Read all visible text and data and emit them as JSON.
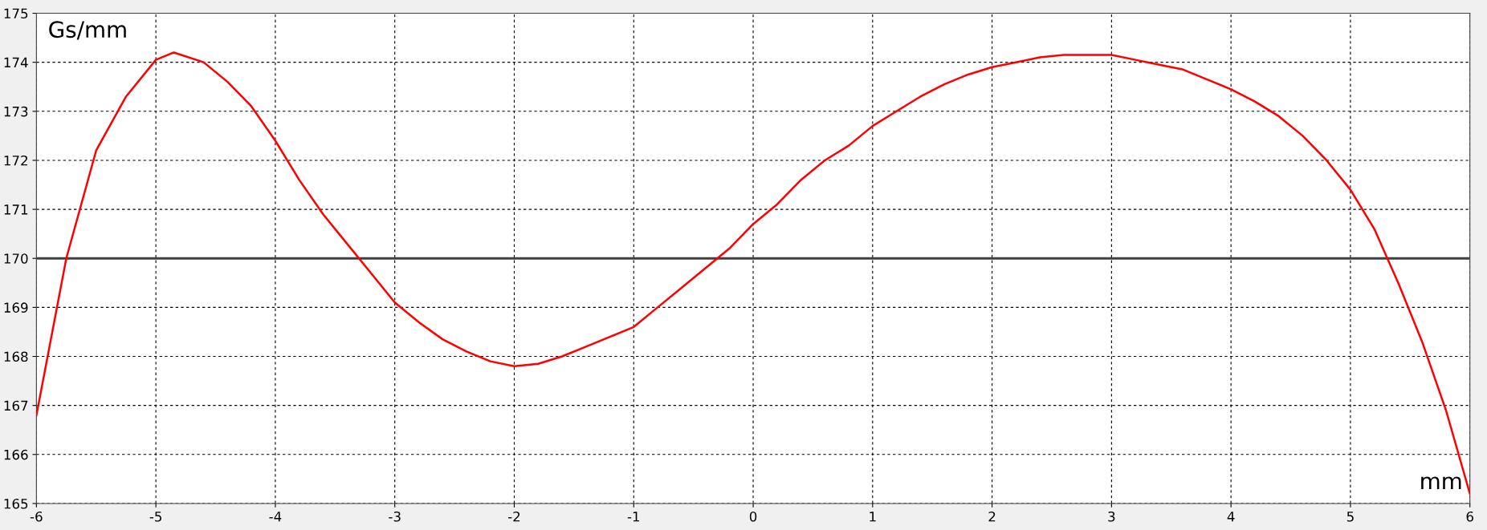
{
  "chart_data": {
    "type": "line",
    "xlabel": "mm",
    "ylabel": "Gs/mm",
    "series": [
      {
        "color": "#ff0000",
        "x": [
          -6,
          -5.75,
          -5.5,
          -5.25,
          -5,
          -4.85,
          -4.6,
          -4.4,
          -4.2,
          -4,
          -3.8,
          -3.6,
          -3.4,
          -3.2,
          -3,
          -2.8,
          -2.6,
          -2.4,
          -2.2,
          -2,
          -1.8,
          -1.6,
          -1.4,
          -1.2,
          -1,
          -0.8,
          -0.6,
          -0.4,
          -0.2,
          0,
          0.2,
          0.4,
          0.6,
          0.8,
          1,
          1.2,
          1.4,
          1.6,
          1.8,
          2,
          2.2,
          2.4,
          2.6,
          2.8,
          3,
          3.2,
          3.4,
          3.6,
          3.8,
          4,
          4.2,
          4.4,
          4.6,
          4.8,
          5,
          5.2,
          5.3,
          5.4,
          5.6,
          5.8,
          6
        ],
        "values": [
          166.8,
          170,
          172.2,
          173.3,
          174.05,
          174.2,
          174.0,
          173.6,
          173.1,
          172.4,
          171.6,
          170.9,
          170.3,
          169.7,
          169.1,
          168.7,
          168.35,
          168.1,
          167.9,
          167.8,
          167.85,
          168.0,
          168.2,
          168.4,
          168.6,
          169.0,
          169.4,
          169.8,
          170.2,
          170.7,
          171.1,
          171.6,
          172.0,
          172.3,
          172.7,
          173.0,
          173.3,
          173.55,
          173.75,
          173.9,
          174.0,
          174.1,
          174.15,
          174.15,
          174.15,
          174.05,
          173.95,
          173.85,
          173.65,
          173.45,
          173.2,
          172.9,
          172.5,
          172.0,
          171.4,
          170.6,
          170.05,
          169.5,
          168.3,
          166.9,
          165.2
        ]
      }
    ],
    "xlim": [
      -6,
      6
    ],
    "xticks": [
      -6,
      -5,
      -4,
      -3,
      -2,
      -1,
      0,
      1,
      2,
      3,
      4,
      5,
      6
    ],
    "ylim": [
      165,
      175
    ],
    "yticks": [
      165,
      166,
      167,
      168,
      169,
      170,
      171,
      172,
      173,
      174,
      175
    ],
    "ref_lines": [
      {
        "axis": "y",
        "value": 170,
        "color": "#404040"
      }
    ],
    "grid": true,
    "legend": false,
    "marker": "none",
    "line_style": "solid"
  }
}
